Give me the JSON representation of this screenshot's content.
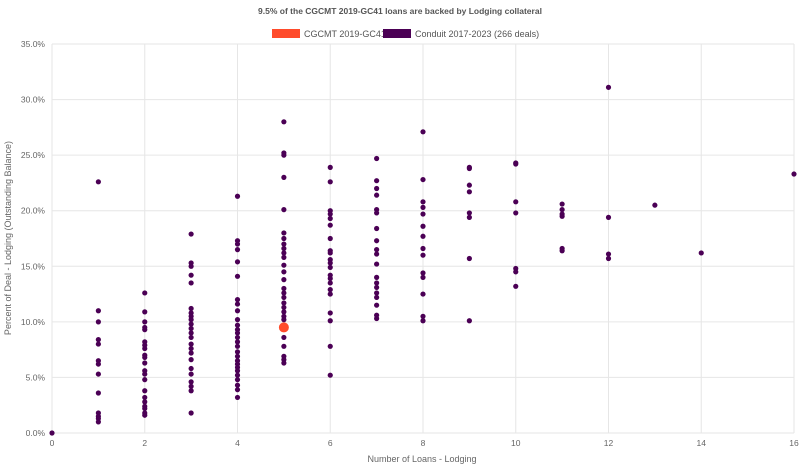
{
  "chart_data": {
    "type": "scatter",
    "title": "9.5% of the CGCMT 2019-GC41 loans are backed by Lodging collateral",
    "xlabel": "Number of Loans - Lodging",
    "ylabel": "Percent of Deal - Lodging (Outstanding Balance)",
    "xlim": [
      0,
      16
    ],
    "ylim": [
      0,
      35
    ],
    "x_ticks": [
      "0",
      "2",
      "4",
      "6",
      "8",
      "10",
      "12",
      "14",
      "16"
    ],
    "y_ticks": [
      "0.0%",
      "5.0%",
      "10.0%",
      "15.0%",
      "20.0%",
      "25.0%",
      "30.0%",
      "35.0%"
    ],
    "grid": true,
    "legend_position": "top",
    "series": [
      {
        "name": "CGCMT 2019-GC41",
        "color": "#ff4b2b",
        "points": [
          [
            5,
            9.5
          ]
        ]
      },
      {
        "name": "Conduit 2017-2023 (266 deals)",
        "color": "#4b0055",
        "points": [
          [
            0,
            0.0
          ],
          [
            1,
            22.6
          ],
          [
            1,
            11.0
          ],
          [
            1,
            10.0
          ],
          [
            1,
            8.4
          ],
          [
            1,
            8.0
          ],
          [
            1,
            6.5
          ],
          [
            1,
            6.2
          ],
          [
            1,
            5.3
          ],
          [
            1,
            3.6
          ],
          [
            1,
            1.8
          ],
          [
            1,
            1.5
          ],
          [
            1,
            1.3
          ],
          [
            1,
            1.0
          ],
          [
            2,
            12.6
          ],
          [
            2,
            10.9
          ],
          [
            2,
            10.0
          ],
          [
            2,
            9.5
          ],
          [
            2,
            9.3
          ],
          [
            2,
            8.2
          ],
          [
            2,
            7.9
          ],
          [
            2,
            7.6
          ],
          [
            2,
            7.0
          ],
          [
            2,
            6.8
          ],
          [
            2,
            6.3
          ],
          [
            2,
            5.6
          ],
          [
            2,
            5.3
          ],
          [
            2,
            4.8
          ],
          [
            2,
            3.8
          ],
          [
            2,
            3.2
          ],
          [
            2,
            2.8
          ],
          [
            2,
            2.4
          ],
          [
            2,
            2.2
          ],
          [
            2,
            1.8
          ],
          [
            2,
            1.6
          ],
          [
            3,
            17.9
          ],
          [
            3,
            15.3
          ],
          [
            3,
            15.0
          ],
          [
            3,
            14.2
          ],
          [
            3,
            13.5
          ],
          [
            3,
            11.2
          ],
          [
            3,
            10.8
          ],
          [
            3,
            10.5
          ],
          [
            3,
            10.2
          ],
          [
            3,
            9.8
          ],
          [
            3,
            9.4
          ],
          [
            3,
            9.0
          ],
          [
            3,
            8.6
          ],
          [
            3,
            8.0
          ],
          [
            3,
            7.6
          ],
          [
            3,
            7.2
          ],
          [
            3,
            6.6
          ],
          [
            3,
            5.8
          ],
          [
            3,
            5.3
          ],
          [
            3,
            4.6
          ],
          [
            3,
            4.2
          ],
          [
            3,
            3.8
          ],
          [
            3,
            1.8
          ],
          [
            4,
            21.3
          ],
          [
            4,
            17.3
          ],
          [
            4,
            17.0
          ],
          [
            4,
            16.5
          ],
          [
            4,
            15.4
          ],
          [
            4,
            14.1
          ],
          [
            4,
            12.0
          ],
          [
            4,
            11.6
          ],
          [
            4,
            11.0
          ],
          [
            4,
            10.2
          ],
          [
            4,
            9.7
          ],
          [
            4,
            9.3
          ],
          [
            4,
            9.0
          ],
          [
            4,
            8.6
          ],
          [
            4,
            8.2
          ],
          [
            4,
            7.8
          ],
          [
            4,
            7.3
          ],
          [
            4,
            6.9
          ],
          [
            4,
            6.5
          ],
          [
            4,
            6.2
          ],
          [
            4,
            5.9
          ],
          [
            4,
            5.6
          ],
          [
            4,
            5.2
          ],
          [
            4,
            4.8
          ],
          [
            4,
            4.3
          ],
          [
            4,
            3.9
          ],
          [
            4,
            3.2
          ],
          [
            5,
            28.0
          ],
          [
            5,
            25.2
          ],
          [
            5,
            25.0
          ],
          [
            5,
            23.0
          ],
          [
            5,
            20.1
          ],
          [
            5,
            18.0
          ],
          [
            5,
            17.5
          ],
          [
            5,
            17.0
          ],
          [
            5,
            16.6
          ],
          [
            5,
            16.2
          ],
          [
            5,
            15.8
          ],
          [
            5,
            15.1
          ],
          [
            5,
            14.5
          ],
          [
            5,
            13.8
          ],
          [
            5,
            13.0
          ],
          [
            5,
            12.6
          ],
          [
            5,
            12.2
          ],
          [
            5,
            11.7
          ],
          [
            5,
            11.3
          ],
          [
            5,
            10.9
          ],
          [
            5,
            10.5
          ],
          [
            5,
            10.2
          ],
          [
            5,
            8.6
          ],
          [
            5,
            7.8
          ],
          [
            5,
            6.9
          ],
          [
            5,
            6.6
          ],
          [
            5,
            6.3
          ],
          [
            6,
            23.9
          ],
          [
            6,
            22.6
          ],
          [
            6,
            20.0
          ],
          [
            6,
            19.7
          ],
          [
            6,
            19.3
          ],
          [
            6,
            18.7
          ],
          [
            6,
            17.5
          ],
          [
            6,
            16.4
          ],
          [
            6,
            16.2
          ],
          [
            6,
            15.6
          ],
          [
            6,
            15.3
          ],
          [
            6,
            14.9
          ],
          [
            6,
            14.2
          ],
          [
            6,
            13.9
          ],
          [
            6,
            13.5
          ],
          [
            6,
            12.9
          ],
          [
            6,
            12.5
          ],
          [
            6,
            10.8
          ],
          [
            6,
            10.1
          ],
          [
            6,
            7.8
          ],
          [
            6,
            5.2
          ],
          [
            7,
            24.7
          ],
          [
            7,
            22.7
          ],
          [
            7,
            22.0
          ],
          [
            7,
            21.4
          ],
          [
            7,
            20.1
          ],
          [
            7,
            19.8
          ],
          [
            7,
            18.4
          ],
          [
            7,
            17.3
          ],
          [
            7,
            16.5
          ],
          [
            7,
            16.1
          ],
          [
            7,
            15.2
          ],
          [
            7,
            14.0
          ],
          [
            7,
            13.5
          ],
          [
            7,
            13.1
          ],
          [
            7,
            12.6
          ],
          [
            7,
            12.2
          ],
          [
            7,
            11.5
          ],
          [
            7,
            10.6
          ],
          [
            7,
            10.3
          ],
          [
            8,
            27.1
          ],
          [
            8,
            22.8
          ],
          [
            8,
            20.8
          ],
          [
            8,
            20.3
          ],
          [
            8,
            19.7
          ],
          [
            8,
            18.6
          ],
          [
            8,
            17.7
          ],
          [
            8,
            16.6
          ],
          [
            8,
            16.0
          ],
          [
            8,
            14.4
          ],
          [
            8,
            14.0
          ],
          [
            8,
            12.5
          ],
          [
            8,
            10.5
          ],
          [
            8,
            10.1
          ],
          [
            9,
            23.9
          ],
          [
            9,
            23.8
          ],
          [
            9,
            22.3
          ],
          [
            9,
            21.7
          ],
          [
            9,
            19.8
          ],
          [
            9,
            19.4
          ],
          [
            9,
            15.7
          ],
          [
            9,
            10.1
          ],
          [
            10,
            24.3
          ],
          [
            10,
            24.2
          ],
          [
            10,
            20.8
          ],
          [
            10,
            19.8
          ],
          [
            10,
            14.8
          ],
          [
            10,
            14.5
          ],
          [
            10,
            13.2
          ],
          [
            11,
            20.6
          ],
          [
            11,
            20.1
          ],
          [
            11,
            19.7
          ],
          [
            11,
            19.5
          ],
          [
            11,
            16.6
          ],
          [
            11,
            16.4
          ],
          [
            12,
            31.1
          ],
          [
            12,
            19.4
          ],
          [
            12,
            16.1
          ],
          [
            12,
            15.7
          ],
          [
            13,
            20.5
          ],
          [
            14,
            16.2
          ],
          [
            16,
            23.3
          ]
        ]
      }
    ]
  }
}
